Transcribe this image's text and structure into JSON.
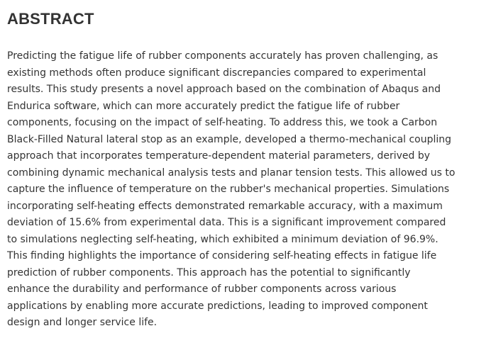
{
  "section": {
    "heading": "ABSTRACT",
    "lines": [
      "Predicting the fatigue life of rubber components accurately has proven challenging, as",
      "existing methods often produce significant discrepancies compared to experimental",
      "results. This study presents a novel approach based on the combination of Abaqus and",
      "Endurica software, which can more accurately predict the fatigue life of rubber",
      "components, focusing on the impact of self-heating. To address this, we took a Carbon",
      "Black-Filled Natural lateral stop as an example, developed a thermo-mechanical coupling",
      "approach that incorporates temperature-dependent material parameters, derived by",
      "combining dynamic mechanical analysis tests and planar tension tests. This allowed us to",
      "capture the influence of temperature on the rubber's mechanical properties. Simulations",
      "incorporating self-heating effects demonstrated remarkable accuracy, with a maximum",
      "deviation of 15.6% from experimental data. This is a significant improvement compared",
      "to simulations neglecting self-heating, which exhibited a minimum deviation of 96.9%.",
      "This finding highlights the importance of considering self-heating effects in fatigue life",
      "prediction of rubber components. This approach has the potential to significantly",
      "enhance the durability and performance of rubber components across various",
      "applications by enabling more accurate predictions, leading to improved component",
      "design and longer service life."
    ]
  }
}
